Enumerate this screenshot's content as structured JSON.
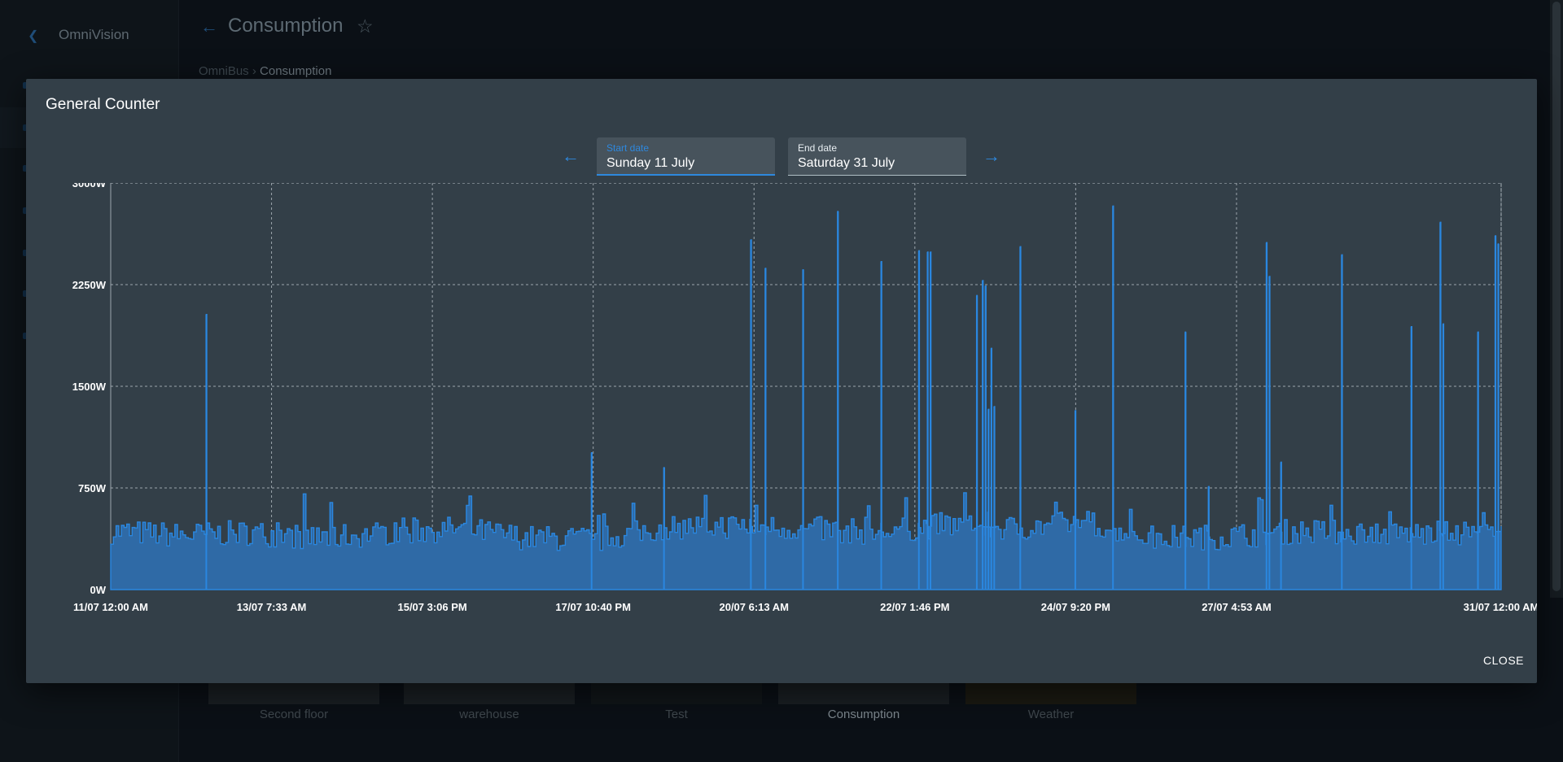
{
  "app": {
    "name": "OmniVision",
    "page_title": "Consumption",
    "breadcrumb": {
      "parent": "OmniBus",
      "separator": "›",
      "current": "Consumption"
    },
    "tiles": [
      "Second floor",
      "warehouse",
      "Test",
      "Consumption",
      "Weather"
    ],
    "active_tile": "Consumption"
  },
  "modal": {
    "title": "General Counter",
    "start_date": {
      "label": "Start date",
      "value": "Sunday 11 July"
    },
    "end_date": {
      "label": "End date",
      "value": "Saturday 31 July"
    },
    "close_label": "CLOSE"
  },
  "colors": {
    "accent": "#2e88de",
    "series_fill": "#2f6aa6",
    "series_line": "#2a87e0",
    "modal_bg": "#333f48",
    "page_bg": "#0b1016"
  },
  "icons": {
    "prev": "arrow-left-icon",
    "next": "arrow-right-icon",
    "favorite": "star-outline-icon",
    "back": "arrow-left-icon"
  },
  "chart_data": {
    "type": "area",
    "title": "",
    "xlabel": "",
    "ylabel": "",
    "unit": "W",
    "ylim": [
      0,
      3000
    ],
    "yticks": [
      0,
      750,
      1500,
      2250,
      3000
    ],
    "ytick_labels": [
      "0W",
      "750W",
      "1500W",
      "2250W",
      "3000W"
    ],
    "xlim": [
      "2021-07-11T00:00",
      "2021-07-31T00:00"
    ],
    "xtick_labels": [
      "11/07 12:00 AM",
      "13/07 7:33 AM",
      "15/07 3:06 PM",
      "17/07 10:40 PM",
      "20/07 6:13 AM",
      "22/07 1:46 PM",
      "24/07 9:20 PM",
      "27/07 4:53 AM",
      "31/07 12:00 AM"
    ],
    "grid": true,
    "series": [
      {
        "baseline": {
          "x": [
            "2021-07-11T00:00",
            "2021-07-12T00:00",
            "2021-07-13T00:00",
            "2021-07-14T00:00",
            "2021-07-15T00:00",
            "2021-07-16T00:00",
            "2021-07-17T00:00",
            "2021-07-18T00:00",
            "2021-07-19T00:00",
            "2021-07-20T00:00",
            "2021-07-21T00:00",
            "2021-07-22T00:00",
            "2021-07-23T00:00",
            "2021-07-24T00:00",
            "2021-07-25T00:00",
            "2021-07-26T00:00",
            "2021-07-27T00:00",
            "2021-07-28T00:00",
            "2021-07-29T00:00",
            "2021-07-30T00:00",
            "2021-07-31T00:00"
          ],
          "y": [
            430,
            400,
            420,
            380,
            420,
            450,
            380,
            370,
            460,
            470,
            450,
            420,
            480,
            450,
            500,
            380,
            390,
            430,
            420,
            410,
            430
          ]
        },
        "spikes": {
          "x": [
            "2021-07-12T09:00",
            "2021-07-17T22:00",
            "2021-07-18T23:00",
            "2021-07-20T05:00",
            "2021-07-20T10:00",
            "2021-07-20T23:00",
            "2021-07-21T11:00",
            "2021-07-22T02:00",
            "2021-07-22T15:00",
            "2021-07-22T18:00",
            "2021-07-22T19:00",
            "2021-07-23T11:00",
            "2021-07-23T13:00",
            "2021-07-23T14:00",
            "2021-07-23T15:00",
            "2021-07-23T16:00",
            "2021-07-23T17:00",
            "2021-07-24T02:00",
            "2021-07-24T21:00",
            "2021-07-25T10:00",
            "2021-07-26T11:00",
            "2021-07-26T19:00",
            "2021-07-27T15:00",
            "2021-07-27T16:00",
            "2021-07-27T20:00",
            "2021-07-28T17:00",
            "2021-07-29T17:00",
            "2021-07-30T03:00",
            "2021-07-30T04:00",
            "2021-07-30T16:00",
            "2021-07-30T22:00",
            "2021-07-30T23:00"
          ],
          "y": [
            2030,
            1010,
            900,
            2580,
            2370,
            2360,
            2790,
            2420,
            2500,
            2490,
            2490,
            2170,
            2280,
            2240,
            1330,
            1780,
            1350,
            2530,
            1320,
            2830,
            1900,
            760,
            2560,
            2310,
            940,
            2470,
            1940,
            2710,
            1960,
            1900,
            2610,
            2550
          ]
        }
      }
    ]
  }
}
